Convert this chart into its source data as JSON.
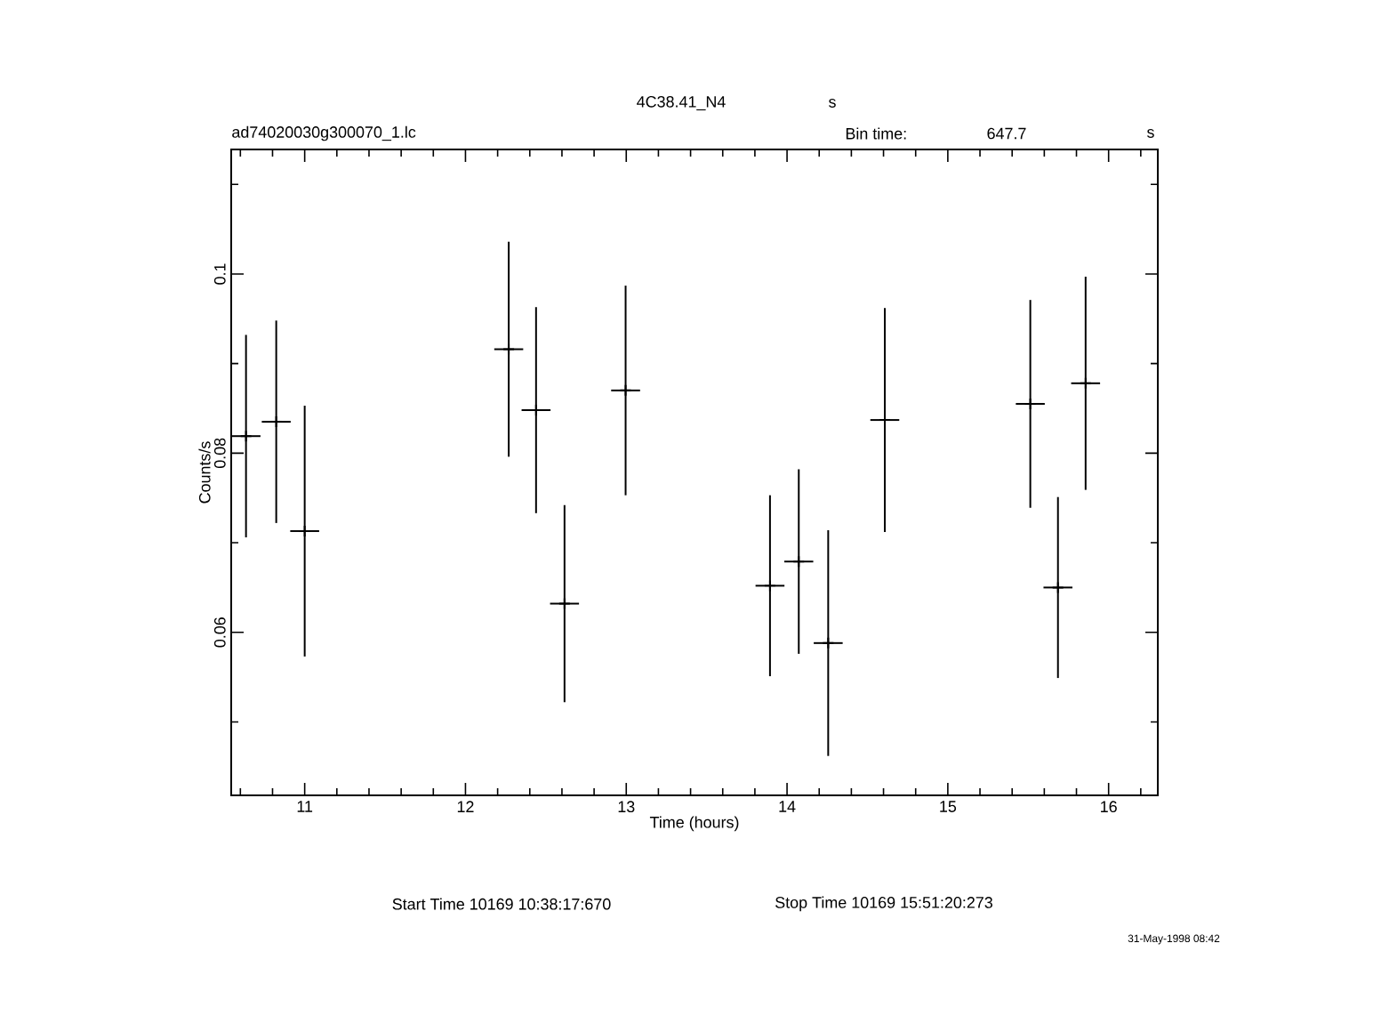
{
  "chart_data": {
    "type": "scatter",
    "title": "4C38.41_N4",
    "subtitle": "ad74020030g300070_1.lc",
    "xlabel": "Time (hours)",
    "ylabel": "Counts/s",
    "annotations": [
      "s",
      "Bin time:",
      "647.7",
      "s",
      "Start Time 10169 10:38:17:670",
      "Stop Time 10169 15:51:20:273",
      "31-May-1998 08:42"
    ],
    "x": [
      10.635,
      10.823,
      11.0,
      12.269,
      12.439,
      12.616,
      12.996,
      13.894,
      14.073,
      14.256,
      14.608,
      15.513,
      15.685,
      15.857
    ],
    "values": [
      0.0819,
      0.0835,
      0.0713,
      0.0916,
      0.0848,
      0.0632,
      0.087,
      0.0652,
      0.0679,
      0.0588,
      0.0837,
      0.0855,
      0.065,
      0.0878
    ],
    "errors": [
      0.0113,
      0.0113,
      0.014,
      0.012,
      0.0115,
      0.011,
      0.0117,
      0.0101,
      0.0103,
      0.0126,
      0.0125,
      0.0116,
      0.0101,
      0.0119
    ],
    "xerrors": [
      0.09,
      0.09,
      0.09,
      0.09,
      0.09,
      0.09,
      0.09,
      0.09,
      0.09,
      0.09,
      0.09,
      0.09,
      0.09,
      0.09
    ],
    "color": "#000000",
    "xlim": [
      10.543,
      16.306
    ],
    "ylim": [
      0.0418,
      0.1139
    ],
    "xticks": [
      {
        "value": 10.6,
        "label": null
      },
      {
        "value": 10.8,
        "label": null
      },
      11,
      {
        "value": 11.2,
        "label": null
      },
      {
        "value": 11.4,
        "label": null
      },
      {
        "value": 11.6,
        "label": null
      },
      {
        "value": 11.8,
        "label": null
      },
      12,
      {
        "value": 12.2,
        "label": null
      },
      {
        "value": 12.4,
        "label": null
      },
      {
        "value": 12.6,
        "label": null
      },
      {
        "value": 12.8,
        "label": null
      },
      13,
      {
        "value": 13.2,
        "label": null
      },
      {
        "value": 13.4,
        "label": null
      },
      {
        "value": 13.6,
        "label": null
      },
      {
        "value": 13.8,
        "label": null
      },
      14,
      {
        "value": 14.2,
        "label": null
      },
      {
        "value": 14.4,
        "label": null
      },
      {
        "value": 14.6,
        "label": null
      },
      {
        "value": 14.8,
        "label": null
      },
      15,
      {
        "value": 15.2,
        "label": null
      },
      {
        "value": 15.4,
        "label": null
      },
      {
        "value": 15.6,
        "label": null
      },
      {
        "value": 15.8,
        "label": null
      },
      16,
      {
        "value": 16.2,
        "label": null
      }
    ],
    "yticks": [
      {
        "value": 0.05,
        "label": null
      },
      0.06,
      {
        "value": 0.07,
        "label": null
      },
      0.08,
      {
        "value": 0.09,
        "label": null
      },
      0.1,
      {
        "value": 0.11,
        "label": null
      }
    ]
  }
}
